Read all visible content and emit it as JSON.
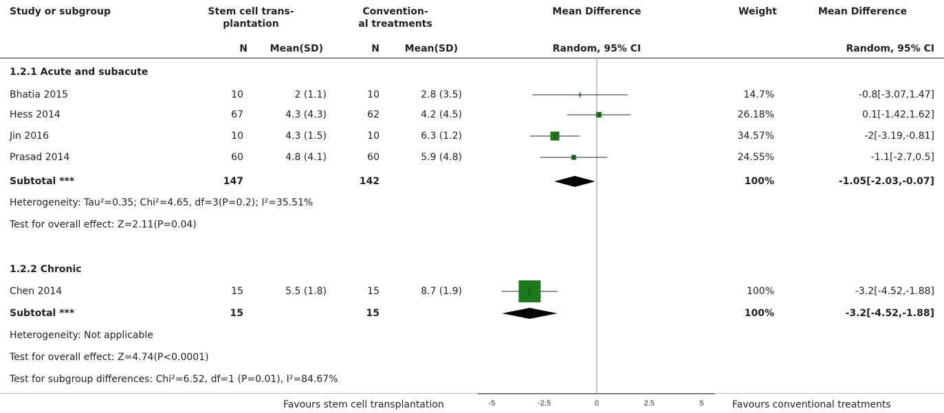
{
  "header": {
    "study": "Study or subgroup",
    "exp_line1": "Stem cell trans-",
    "exp_line2": "plantation",
    "ctl_line1": "Convention-",
    "ctl_line2": "al treatments",
    "md_title": "Mean Difference",
    "weight": "Weight",
    "md_title2": "Mean Difference",
    "n1": "N",
    "mean1": "Mean(SD)",
    "n2": "N",
    "mean2": "Mean(SD)",
    "method": "Random, 95% CI",
    "method2": "Random, 95% CI"
  },
  "groups": [
    {
      "title": "1.2.1 Acute and subacute",
      "studies": [
        {
          "name": "Bhatia 2015",
          "n1": "10",
          "mean1": "2 (1.1)",
          "n2": "10",
          "mean2": "2.8 (3.5)",
          "weight": "14.7%",
          "ci": "-0.8[-3.07,1.47]"
        },
        {
          "name": "Hess 2014",
          "n1": "67",
          "mean1": "4.3 (4.3)",
          "n2": "62",
          "mean2": "4.2 (4.5)",
          "weight": "26.18%",
          "ci": "0.1[-1.42,1.62]"
        },
        {
          "name": "Jin 2016",
          "n1": "10",
          "mean1": "4.3 (1.5)",
          "n2": "10",
          "mean2": "6.3 (1.2)",
          "weight": "34.57%",
          "ci": "-2[-3.19,-0.81]"
        },
        {
          "name": "Prasad 2014",
          "n1": "60",
          "mean1": "4.8 (4.1)",
          "n2": "60",
          "mean2": "5.9 (4.8)",
          "weight": "24.55%",
          "ci": "-1.1[-2.7,0.5]"
        }
      ],
      "subtotal": {
        "label": "Subtotal ***",
        "n1": "147",
        "n2": "142",
        "weight": "100%",
        "ci": "-1.05[-2.03,-0.07]"
      },
      "heterogeneity": "Heterogeneity: Tau²=0.35; Chi²=4.65, df=3(P=0.2); I²=35.51%",
      "overall": "Test for overall effect: Z=2.11(P=0.04)"
    },
    {
      "title": "1.2.2 Chronic",
      "studies": [
        {
          "name": "Chen 2014",
          "n1": "15",
          "mean1": "5.5 (1.8)",
          "n2": "15",
          "mean2": "8.7 (1.9)",
          "weight": "100%",
          "ci": "-3.2[-4.52,-1.88]"
        }
      ],
      "subtotal": {
        "label": "Subtotal ***",
        "n1": "15",
        "n2": "15",
        "weight": "100%",
        "ci": "-3.2[-4.52,-1.88]"
      },
      "heterogeneity": "Heterogeneity: Not applicable",
      "overall": "Test for overall effect: Z=4.74(P<0.0001)"
    }
  ],
  "subgroup_test": "Test for subgroup differences: Chi²=6.52, df=1 (P=0.01), I²=84.67%",
  "footer": {
    "favours_left": "Favours stem cell transplantation",
    "favours_right": "Favours conventional treatments"
  },
  "chart_data": {
    "type": "forest",
    "x_ticks": [
      "-5",
      "-2.5",
      "0",
      "2.5",
      "5"
    ],
    "xlim": [
      -5,
      5
    ],
    "marker_color": "#1a7a1a",
    "studies": [
      {
        "name": "Bhatia 2015",
        "md": -0.8,
        "lo": -3.07,
        "hi": 1.47,
        "weight": 14.7
      },
      {
        "name": "Hess 2014",
        "md": 0.1,
        "lo": -1.42,
        "hi": 1.62,
        "weight": 26.18
      },
      {
        "name": "Jin 2016",
        "md": -2,
        "lo": -3.19,
        "hi": -0.81,
        "weight": 34.57
      },
      {
        "name": "Prasad 2014",
        "md": -1.1,
        "lo": -2.7,
        "hi": 0.5,
        "weight": 24.55
      },
      {
        "name": "Chen 2014",
        "md": -3.2,
        "lo": -4.52,
        "hi": -1.88,
        "weight": 100
      }
    ],
    "subtotals": [
      {
        "label": "Subtotal 1.2.1",
        "md": -1.05,
        "lo": -2.03,
        "hi": -0.07
      },
      {
        "label": "Subtotal 1.2.2",
        "md": -3.2,
        "lo": -4.52,
        "hi": -1.88
      }
    ]
  }
}
